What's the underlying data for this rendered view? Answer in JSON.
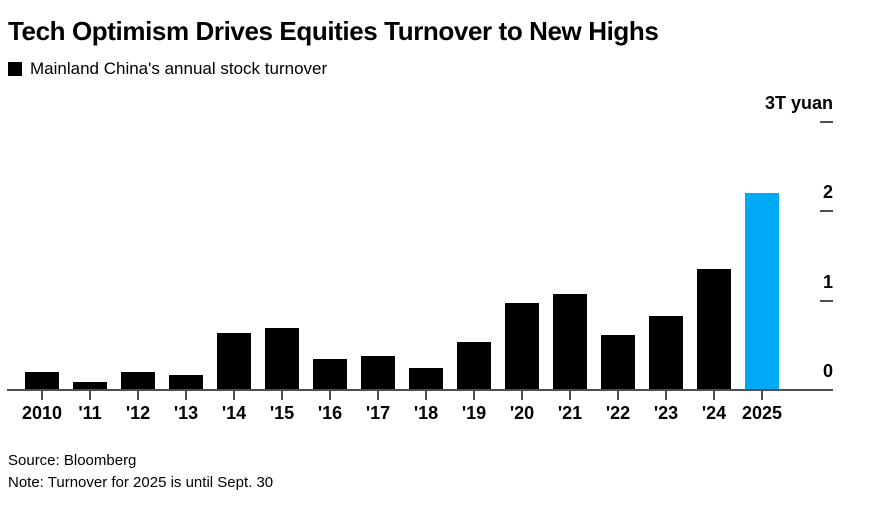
{
  "header": {
    "title": "Tech Optimism Drives Equities Turnover to New Highs",
    "legend_label": "Mainland China's annual stock turnover"
  },
  "chart_data": {
    "type": "bar",
    "title": "Tech Optimism Drives Equities Turnover to New Highs",
    "legend": "Mainland China's annual stock turnover",
    "unit_label": "3T yuan",
    "categories": [
      "2010",
      "'11",
      "'12",
      "'13",
      "'14",
      "'15",
      "'16",
      "'17",
      "'18",
      "'19",
      "'20",
      "'21",
      "'22",
      "'23",
      "'24",
      "2025"
    ],
    "values": [
      0.19,
      0.08,
      0.19,
      0.16,
      0.63,
      0.68,
      0.33,
      0.37,
      0.24,
      0.53,
      0.96,
      1.06,
      0.6,
      0.82,
      1.34,
      2.19
    ],
    "ylim": [
      0,
      3
    ],
    "y_ticks": [
      {
        "value": 3,
        "label": "3T yuan",
        "dash": true
      },
      {
        "value": 2,
        "label": "2",
        "dash": true
      },
      {
        "value": 1,
        "label": "1",
        "dash": true
      },
      {
        "value": 0,
        "label": "0",
        "dash": false
      }
    ],
    "value_axis_side": "right",
    "grid": false,
    "bar_color": "#000000",
    "highlight": {
      "index": 15,
      "category": "2025",
      "color": "#00A9F4"
    }
  },
  "footer": {
    "source": "Source: Bloomberg",
    "note": "Note: Turnover for 2025 is until Sept. 30"
  }
}
